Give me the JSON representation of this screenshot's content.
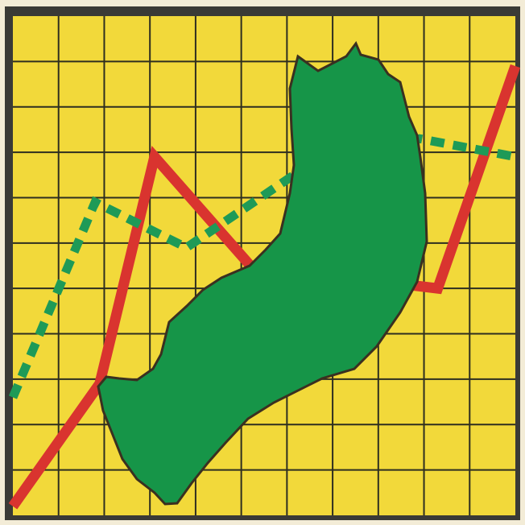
{
  "colors": {
    "paper": "#f3ecd7",
    "frame": "#3a3a36",
    "panel": "#f2d93a",
    "grid": "#2e2e20",
    "region": "#169548",
    "region_edge": "#3a3020",
    "solid_line": "#d9342f",
    "dashed_line": "#1e9a57"
  },
  "icons": {
    "region": "green-landmass-silhouette"
  },
  "chart_data": {
    "type": "line",
    "grid": true,
    "grid_columns": 11,
    "grid_rows": 11,
    "xlim": [
      0,
      11
    ],
    "ylim": [
      0,
      11
    ],
    "title": "",
    "xlabel": "",
    "ylabel": "",
    "series": [
      {
        "style": "solid",
        "color": "#d9342f",
        "x": [
          0,
          1.9,
          3.1,
          5.2,
          9.3,
          11
        ],
        "y": [
          0.2,
          2.9,
          7.9,
          5.5,
          5.0,
          9.9
        ]
      },
      {
        "style": "dashed",
        "color": "#1e9a57",
        "x": [
          0,
          1.8,
          3.8,
          6.3,
          8.9,
          11
        ],
        "y": [
          2.6,
          6.9,
          5.9,
          7.6,
          8.3,
          7.9
        ]
      }
    ]
  }
}
